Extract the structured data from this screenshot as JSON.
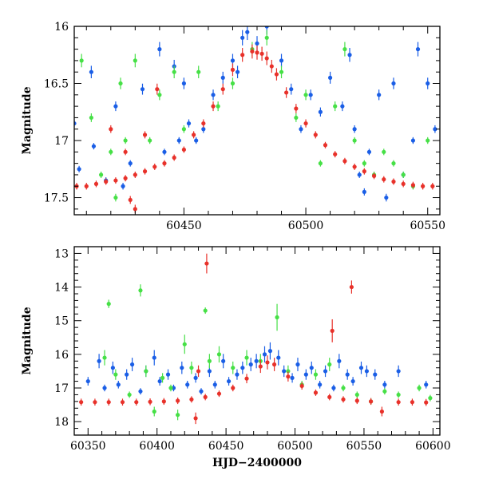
{
  "chart_data": [
    {
      "type": "scatter",
      "panel": "top",
      "xlabel": "",
      "ylabel": "Magnitude",
      "xlim": [
        60405,
        60555
      ],
      "ylim": [
        17.65,
        16.0
      ],
      "y_inverted": true,
      "x_ticks": [
        60450,
        60500,
        60550
      ],
      "y_ticks": [
        16,
        16.5,
        17,
        17.5
      ],
      "x_tick_labels": [
        "60450",
        "60500",
        "60550"
      ],
      "y_tick_labels": [
        "16",
        "16.5",
        "17",
        "17.5"
      ],
      "grid": false,
      "legend": "none",
      "series": [
        {
          "color": "#e8312a",
          "marker": "circle",
          "error_bars": true,
          "x": [
            60406,
            60410,
            60414,
            60418,
            60422,
            60426,
            60428,
            60430,
            60434,
            60438,
            60442,
            60446,
            60450,
            60454,
            60458,
            60462,
            60466,
            60470,
            60474,
            60478,
            60480,
            60482,
            60484,
            60486,
            60488,
            60492,
            60496,
            60500,
            60504,
            60508,
            60512,
            60516,
            60520,
            60524,
            60528,
            60532,
            60536,
            60540,
            60544,
            60548,
            60552,
            60439,
            60434,
            60420,
            60430,
            60426
          ],
          "y": [
            17.4,
            17.4,
            17.38,
            17.36,
            17.35,
            17.33,
            17.52,
            17.3,
            17.27,
            17.23,
            17.2,
            17.15,
            17.08,
            16.95,
            16.85,
            16.7,
            16.55,
            16.38,
            16.25,
            16.22,
            16.23,
            16.24,
            16.28,
            16.35,
            16.42,
            16.58,
            16.72,
            16.85,
            16.95,
            17.04,
            17.12,
            17.18,
            17.23,
            17.27,
            17.31,
            17.34,
            17.36,
            17.38,
            17.39,
            17.4,
            17.4,
            16.55,
            16.95,
            16.9,
            17.6,
            17.1
          ]
        },
        {
          "color": "#1a5ee6",
          "marker": "circle",
          "error_bars": true,
          "x": [
            60405,
            60407,
            60412,
            60413,
            60418,
            60422,
            60425,
            60428,
            60433,
            60440,
            60442,
            60446,
            60448,
            60450,
            60455,
            60458,
            60462,
            60466,
            60470,
            60472,
            60476,
            60480,
            60484,
            60490,
            60494,
            60498,
            60502,
            60506,
            60510,
            60515,
            60518,
            60520,
            60522,
            60524,
            60526,
            60530,
            60533,
            60536,
            60540,
            60544,
            60546,
            60550,
            60553,
            60452,
            60474
          ],
          "y": [
            16.85,
            17.25,
            16.4,
            17.05,
            17.35,
            16.7,
            17.4,
            17.2,
            16.55,
            16.2,
            17.1,
            16.35,
            17.0,
            16.5,
            17.0,
            16.9,
            16.6,
            16.45,
            16.3,
            16.4,
            16.05,
            16.15,
            16.0,
            16.3,
            16.55,
            16.9,
            16.6,
            16.75,
            16.45,
            16.7,
            16.25,
            16.9,
            17.3,
            17.45,
            17.1,
            16.6,
            17.5,
            16.5,
            17.3,
            17.0,
            16.2,
            16.5,
            16.9,
            16.85,
            16.1
          ]
        },
        {
          "color": "#46e046",
          "marker": "circle",
          "error_bars": true,
          "x": [
            60408,
            60412,
            60416,
            60420,
            60424,
            60426,
            60430,
            60436,
            60440,
            60446,
            60450,
            60456,
            60464,
            60470,
            60478,
            60484,
            60490,
            60496,
            60500,
            60506,
            60512,
            60516,
            60520,
            60524,
            60528,
            60532,
            60536,
            60540,
            60544,
            60550,
            60422
          ],
          "y": [
            16.3,
            16.8,
            17.3,
            17.1,
            16.5,
            17.0,
            16.3,
            17.0,
            16.6,
            16.4,
            16.9,
            16.4,
            16.7,
            16.5,
            16.2,
            16.1,
            16.4,
            16.8,
            16.6,
            17.2,
            16.7,
            16.2,
            17.0,
            17.2,
            17.3,
            17.1,
            17.2,
            17.3,
            17.4,
            17.0,
            17.5
          ]
        }
      ]
    },
    {
      "type": "scatter",
      "panel": "bottom",
      "xlabel": "HJD−2400000",
      "ylabel": "Magnitude",
      "xlim": [
        60340,
        60605
      ],
      "ylim": [
        18.4,
        12.8
      ],
      "y_inverted": true,
      "x_ticks": [
        60350,
        60400,
        60450,
        60500,
        60550,
        60600
      ],
      "y_ticks": [
        13,
        14,
        15,
        16,
        17,
        18
      ],
      "x_tick_labels": [
        "60350",
        "60400",
        "60450",
        "60500",
        "60550",
        "60600"
      ],
      "y_tick_labels": [
        "13",
        "14",
        "15",
        "16",
        "17",
        "18"
      ],
      "grid": false,
      "legend": "none",
      "series": [
        {
          "color": "#e8312a",
          "marker": "circle",
          "error_bars": true,
          "x": [
            60345,
            60355,
            60365,
            60375,
            60385,
            60395,
            60405,
            60415,
            60425,
            60428,
            60435,
            60445,
            60455,
            60465,
            60475,
            60480,
            60485,
            60495,
            60505,
            60515,
            60525,
            60527,
            60535,
            60541,
            60545,
            60555,
            60563,
            60575,
            60585,
            60595,
            60436,
            60430
          ],
          "y": [
            17.42,
            17.42,
            17.42,
            17.42,
            17.42,
            17.41,
            17.4,
            17.38,
            17.34,
            17.9,
            17.27,
            17.17,
            17.0,
            16.72,
            16.36,
            16.24,
            16.3,
            16.66,
            16.94,
            17.14,
            17.27,
            15.3,
            17.34,
            14.0,
            17.38,
            17.4,
            17.7,
            17.42,
            17.42,
            17.43,
            13.3,
            16.5
          ]
        },
        {
          "color": "#1a5ee6",
          "marker": "circle",
          "error_bars": true,
          "x": [
            60350,
            60358,
            60362,
            60368,
            60372,
            60378,
            60382,
            60388,
            60392,
            60398,
            60402,
            60408,
            60412,
            60418,
            60422,
            60428,
            60432,
            60438,
            60442,
            60448,
            60452,
            60458,
            60462,
            60468,
            60472,
            60478,
            60482,
            60488,
            60492,
            60498,
            60502,
            60508,
            60512,
            60518,
            60522,
            60528,
            60532,
            60538,
            60542,
            60548,
            60552,
            60558,
            60565,
            60575,
            60595
          ],
          "y": [
            16.8,
            16.2,
            17.0,
            16.4,
            16.9,
            16.6,
            16.3,
            17.1,
            16.5,
            16.1,
            16.8,
            16.6,
            17.0,
            16.4,
            16.9,
            16.7,
            17.1,
            16.5,
            16.9,
            16.2,
            16.8,
            16.6,
            16.4,
            16.3,
            16.2,
            16.0,
            15.9,
            16.1,
            16.5,
            16.7,
            16.3,
            16.6,
            16.4,
            16.9,
            16.5,
            17.0,
            16.2,
            16.6,
            16.8,
            16.4,
            16.5,
            16.6,
            16.9,
            16.5,
            16.9
          ]
        },
        {
          "color": "#46e046",
          "marker": "circle",
          "error_bars": true,
          "x": [
            60362,
            60365,
            60370,
            60380,
            60388,
            60392,
            60398,
            60404,
            60410,
            60415,
            60420,
            60425,
            60435,
            60438,
            60445,
            60455,
            60465,
            60475,
            60487,
            60495,
            60505,
            60515,
            60525,
            60535,
            60545,
            60555,
            60565,
            60575,
            60590,
            60598
          ],
          "y": [
            16.1,
            14.5,
            16.6,
            17.2,
            14.1,
            16.5,
            17.7,
            16.7,
            17.0,
            17.8,
            15.7,
            16.4,
            14.7,
            16.2,
            16.0,
            16.4,
            16.1,
            16.2,
            14.9,
            16.5,
            16.9,
            16.6,
            16.3,
            17.0,
            17.2,
            17.4,
            17.1,
            17.2,
            17.0,
            17.3
          ]
        }
      ]
    }
  ]
}
